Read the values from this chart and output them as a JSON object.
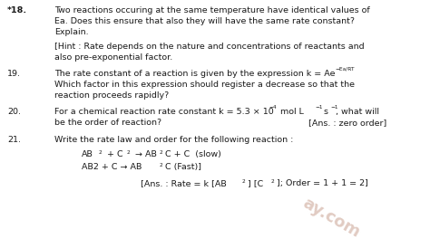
{
  "background_color": "#ffffff",
  "figsize": [
    4.74,
    2.64
  ],
  "dpi": 100,
  "fs": 6.8,
  "fs_sup": 4.2,
  "color": "#1a1a1a",
  "wm_color": "#c8a090",
  "wm_alpha": 0.55,
  "wm_size": 13,
  "wm_rotation": -30
}
